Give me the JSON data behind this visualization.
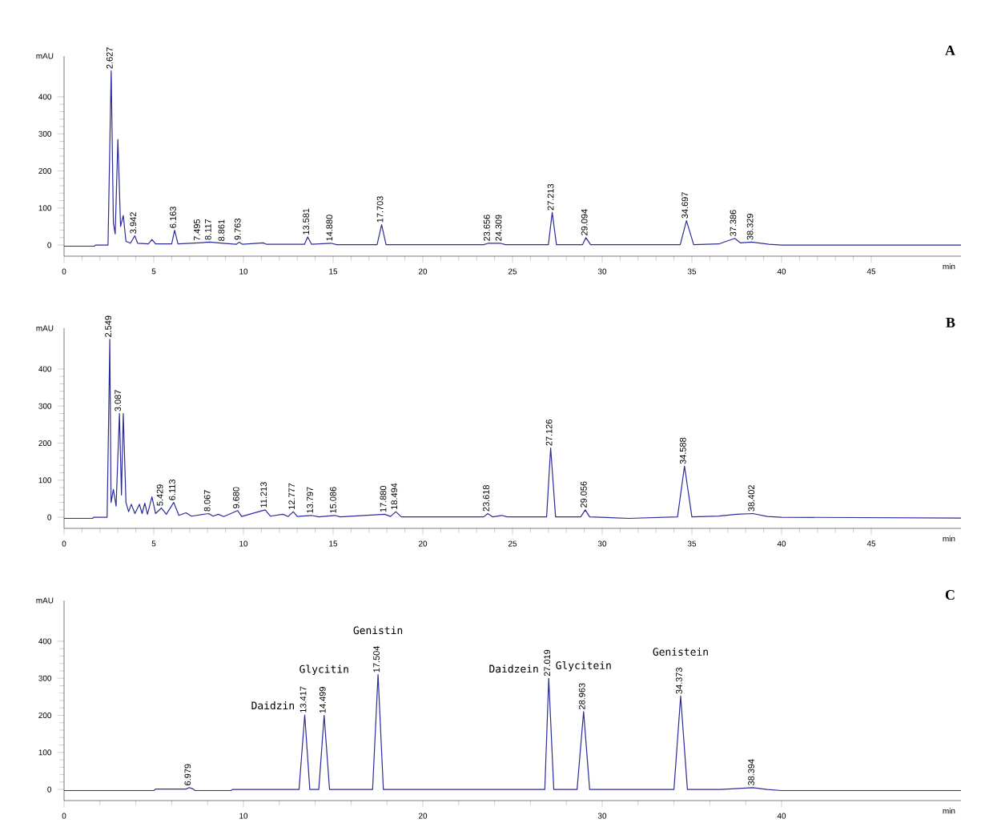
{
  "chart_data": [
    {
      "type": "line",
      "title": "A",
      "xlabel": "min",
      "ylabel": "mAU",
      "xlim": [
        0,
        50
      ],
      "ylim": [
        -30,
        510
      ],
      "xticks": [
        0,
        5,
        10,
        15,
        20,
        25,
        30,
        35,
        40,
        45
      ],
      "yticks": [
        0,
        100,
        200,
        300,
        400
      ],
      "series": [
        {
          "color": "#2b2b9a",
          "x": [
            0,
            1.7,
            1.75,
            2.45,
            2.627,
            2.75,
            2.85,
            3.0,
            3.15,
            3.3,
            3.45,
            3.7,
            3.942,
            4.1,
            4.7,
            4.9,
            5.1,
            6.0,
            6.163,
            6.35,
            7.495,
            8.117,
            8.861,
            9.6,
            9.763,
            9.95,
            11.1,
            11.3,
            13.4,
            13.581,
            13.8,
            14.88,
            15.2,
            17.45,
            17.703,
            17.95,
            23.4,
            23.656,
            24.309,
            24.6,
            27.0,
            27.213,
            27.45,
            28.9,
            29.094,
            29.35,
            34.35,
            34.697,
            35.1,
            36.5,
            37.386,
            37.7,
            38.329,
            39.3,
            40,
            50
          ],
          "values": [
            -3,
            -3,
            0,
            0,
            470,
            60,
            30,
            285,
            50,
            80,
            10,
            5,
            25,
            5,
            3,
            15,
            3,
            3,
            40,
            3,
            6,
            8,
            5,
            2,
            8,
            2,
            6,
            2,
            2,
            22,
            2,
            5,
            1,
            1,
            55,
            1,
            1,
            5,
            5,
            1,
            1,
            88,
            1,
            1,
            20,
            1,
            1,
            66,
            1,
            3,
            18,
            6,
            8,
            2,
            0,
            0
          ]
        }
      ],
      "annotations": [
        {
          "text": "2.627",
          "x": 2.627,
          "y": 470
        },
        {
          "text": "3.942",
          "x": 3.942,
          "y": 25
        },
        {
          "text": "6.163",
          "x": 6.163,
          "y": 40
        },
        {
          "text": "7.495",
          "x": 7.495,
          "y": 6
        },
        {
          "text": "8.117",
          "x": 8.117,
          "y": 8
        },
        {
          "text": "8.861",
          "x": 8.861,
          "y": 5
        },
        {
          "text": "9.763",
          "x": 9.763,
          "y": 8
        },
        {
          "text": "13.581",
          "x": 13.581,
          "y": 22
        },
        {
          "text": "14.880",
          "x": 14.88,
          "y": 5
        },
        {
          "text": "17.703",
          "x": 17.703,
          "y": 55
        },
        {
          "text": "23.656",
          "x": 23.656,
          "y": 5
        },
        {
          "text": "24.309",
          "x": 24.309,
          "y": 5
        },
        {
          "text": "27.213",
          "x": 27.213,
          "y": 88
        },
        {
          "text": "29.094",
          "x": 29.094,
          "y": 20
        },
        {
          "text": "34.697",
          "x": 34.697,
          "y": 66
        },
        {
          "text": "37.386",
          "x": 37.386,
          "y": 18
        },
        {
          "text": "38.329",
          "x": 38.329,
          "y": 8
        }
      ]
    },
    {
      "type": "line",
      "title": "B",
      "xlabel": "min",
      "ylabel": "mAU",
      "xlim": [
        0,
        50
      ],
      "ylim": [
        -30,
        510
      ],
      "xticks": [
        0,
        5,
        10,
        15,
        20,
        25,
        30,
        35,
        40,
        45
      ],
      "yticks": [
        0,
        100,
        200,
        300,
        400
      ],
      "series": [
        {
          "color": "#2b2b9a",
          "x": [
            0,
            1.6,
            1.65,
            2.4,
            2.52,
            2.549,
            2.62,
            2.75,
            2.9,
            3.087,
            3.2,
            3.3,
            3.45,
            3.6,
            3.75,
            3.95,
            4.2,
            4.35,
            4.5,
            4.65,
            4.9,
            5.1,
            5.429,
            5.7,
            6.113,
            6.4,
            6.8,
            7.1,
            8.067,
            8.3,
            8.6,
            8.9,
            9.68,
            9.9,
            11.213,
            11.5,
            12.2,
            12.5,
            12.777,
            13.0,
            13.797,
            14.2,
            15.086,
            15.4,
            17.88,
            18.2,
            18.494,
            18.8,
            23.4,
            23.618,
            23.9,
            24.4,
            24.7,
            26.9,
            27.126,
            27.4,
            28.8,
            29.056,
            29.3,
            31.5,
            34.2,
            34.588,
            35.0,
            36.5,
            37.5,
            38.402,
            39.2,
            40,
            50
          ],
          "values": [
            -3,
            -3,
            0,
            0,
            375,
            480,
            40,
            75,
            30,
            280,
            60,
            280,
            40,
            15,
            35,
            10,
            35,
            10,
            38,
            8,
            55,
            10,
            25,
            8,
            40,
            5,
            12,
            3,
            10,
            3,
            8,
            2,
            18,
            2,
            20,
            3,
            8,
            2,
            15,
            2,
            5,
            1,
            5,
            1,
            8,
            2,
            15,
            1,
            1,
            10,
            1,
            5,
            1,
            1,
            187,
            1,
            1,
            20,
            1,
            -3,
            1,
            138,
            1,
            3,
            8,
            10,
            2,
            0,
            -2
          ]
        }
      ],
      "annotations": [
        {
          "text": "2.549",
          "x": 2.549,
          "y": 480
        },
        {
          "text": "3.087",
          "x": 3.087,
          "y": 280
        },
        {
          "text": "5.429",
          "x": 5.429,
          "y": 25
        },
        {
          "text": "6.113",
          "x": 6.113,
          "y": 40
        },
        {
          "text": "8.067",
          "x": 8.067,
          "y": 10
        },
        {
          "text": "9.680",
          "x": 9.68,
          "y": 18
        },
        {
          "text": "11.213",
          "x": 11.213,
          "y": 20
        },
        {
          "text": "12.777",
          "x": 12.777,
          "y": 15
        },
        {
          "text": "13.797",
          "x": 13.797,
          "y": 5
        },
        {
          "text": "15.086",
          "x": 15.086,
          "y": 5
        },
        {
          "text": "17.880",
          "x": 17.88,
          "y": 8
        },
        {
          "text": "18.494",
          "x": 18.494,
          "y": 15
        },
        {
          "text": "23.618",
          "x": 23.618,
          "y": 10
        },
        {
          "text": "27.126",
          "x": 27.126,
          "y": 187
        },
        {
          "text": "29.056",
          "x": 29.056,
          "y": 20
        },
        {
          "text": "34.588",
          "x": 34.588,
          "y": 138
        },
        {
          "text": "38.402",
          "x": 38.402,
          "y": 10
        }
      ]
    },
    {
      "type": "line",
      "title": "C",
      "xlabel": "min",
      "ylabel": "mAU",
      "xlim": [
        0,
        50
      ],
      "ylim": [
        -30,
        510
      ],
      "xticks": [
        0,
        10,
        20,
        30,
        40
      ],
      "yticks": [
        0,
        100,
        200,
        300,
        400
      ],
      "series": [
        {
          "color": "#2b2b9a",
          "x": [
            0,
            5,
            5.1,
            6.8,
            6.979,
            7.2,
            7.3,
            9.3,
            9.4,
            13.1,
            13.417,
            13.7,
            14.2,
            14.499,
            14.8,
            17.2,
            17.504,
            17.8,
            26.8,
            27.019,
            27.3,
            28.6,
            28.963,
            29.3,
            34.0,
            34.373,
            34.75,
            36.6,
            38.394,
            39.2,
            40,
            50
          ],
          "values": [
            -3,
            -3,
            1,
            1,
            5,
            1,
            -3,
            -3,
            0,
            0,
            201,
            0,
            0,
            200,
            0,
            0,
            310,
            0,
            0,
            300,
            0,
            0,
            210,
            0,
            0,
            252,
            0,
            0,
            5,
            0,
            -3,
            -3
          ]
        }
      ],
      "annotations": [
        {
          "text": "6.979",
          "x": 6.979,
          "y": 5
        },
        {
          "text": "13.417",
          "x": 13.417,
          "y": 201
        },
        {
          "text": "14.499",
          "x": 14.499,
          "y": 200
        },
        {
          "text": "17.504",
          "x": 17.504,
          "y": 310
        },
        {
          "text": "27.019",
          "x": 27.019,
          "y": 300
        },
        {
          "text": "28.963",
          "x": 28.963,
          "y": 210
        },
        {
          "text": "34.373",
          "x": 34.373,
          "y": 252
        },
        {
          "text": "38.394",
          "x": 38.394,
          "y": 5
        },
        "Daidzin",
        "Glycitin",
        "Genistin",
        "Daidzein",
        "Glycitein",
        "Genistein"
      ]
    }
  ]
}
